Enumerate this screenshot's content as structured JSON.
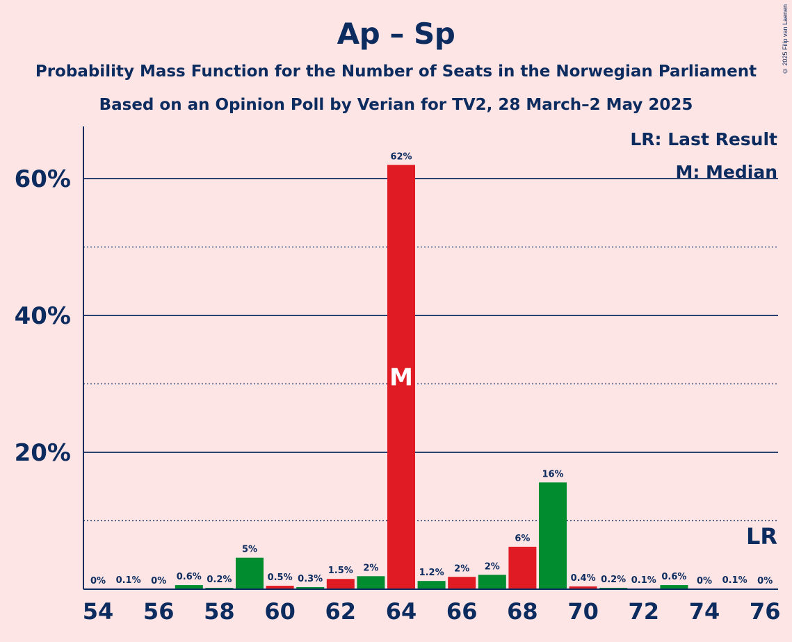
{
  "title": "Ap – Sp",
  "subtitle1": "Probability Mass Function for the Number of Seats in the Norwegian Parliament",
  "subtitle2": "Based on an Opinion Poll by Verian for TV2, 28 March–2 May 2025",
  "copyright": "© 2025 Filip van Laenen",
  "colors": {
    "background": "#FDE4E5",
    "text": "#0C2B5E",
    "red": "#E01B24",
    "green": "#008C2F"
  },
  "chart_data": {
    "type": "bar",
    "xlabel": "",
    "ylabel": "",
    "ylim": [
      0,
      67
    ],
    "yticks": [
      20,
      40,
      60
    ],
    "ytick_labels": [
      "20%",
      "40%",
      "60%"
    ],
    "grid": "solid at 20/40/60, dotted at 10/30/50",
    "xticks": [
      "54",
      "56",
      "58",
      "60",
      "62",
      "64",
      "66",
      "68",
      "70",
      "72",
      "74",
      "76"
    ],
    "legend": {
      "lr": "LR: Last Result",
      "m": "M: Median",
      "placement": "top-right"
    },
    "median_seat": 64,
    "median_marker": "M",
    "last_result_seat": 76,
    "last_result_marker": "LR",
    "bars": [
      {
        "seat": 54,
        "value": 0,
        "label": "0%",
        "color": "green"
      },
      {
        "seat": 55,
        "value": 0.1,
        "label": "0.1%",
        "color": "green"
      },
      {
        "seat": 56,
        "value": 0,
        "label": "0%",
        "color": "green"
      },
      {
        "seat": 57,
        "value": 0.6,
        "label": "0.6%",
        "color": "green"
      },
      {
        "seat": 58,
        "value": 0.2,
        "label": "0.2%",
        "color": "green"
      },
      {
        "seat": 59,
        "value": 4.6,
        "label": "5%",
        "color": "green"
      },
      {
        "seat": 60,
        "value": 0.5,
        "label": "0.5%",
        "color": "red"
      },
      {
        "seat": 61,
        "value": 0.3,
        "label": "0.3%",
        "color": "green"
      },
      {
        "seat": 62,
        "value": 1.5,
        "label": "1.5%",
        "color": "red"
      },
      {
        "seat": 63,
        "value": 1.9,
        "label": "2%",
        "color": "green"
      },
      {
        "seat": 64,
        "value": 62,
        "label": "62%",
        "color": "red"
      },
      {
        "seat": 65,
        "value": 1.2,
        "label": "1.2%",
        "color": "green"
      },
      {
        "seat": 66,
        "value": 1.8,
        "label": "2%",
        "color": "red"
      },
      {
        "seat": 67,
        "value": 2.1,
        "label": "2%",
        "color": "green"
      },
      {
        "seat": 68,
        "value": 6.2,
        "label": "6%",
        "color": "red"
      },
      {
        "seat": 69,
        "value": 15.6,
        "label": "16%",
        "color": "green"
      },
      {
        "seat": 70,
        "value": 0.4,
        "label": "0.4%",
        "color": "red"
      },
      {
        "seat": 71,
        "value": 0.2,
        "label": "0.2%",
        "color": "green"
      },
      {
        "seat": 72,
        "value": 0.1,
        "label": "0.1%",
        "color": "green"
      },
      {
        "seat": 73,
        "value": 0.6,
        "label": "0.6%",
        "color": "green"
      },
      {
        "seat": 74,
        "value": 0,
        "label": "0%",
        "color": "green"
      },
      {
        "seat": 75,
        "value": 0.1,
        "label": "0.1%",
        "color": "green"
      },
      {
        "seat": 76,
        "value": 0,
        "label": "0%",
        "color": "green"
      }
    ]
  }
}
